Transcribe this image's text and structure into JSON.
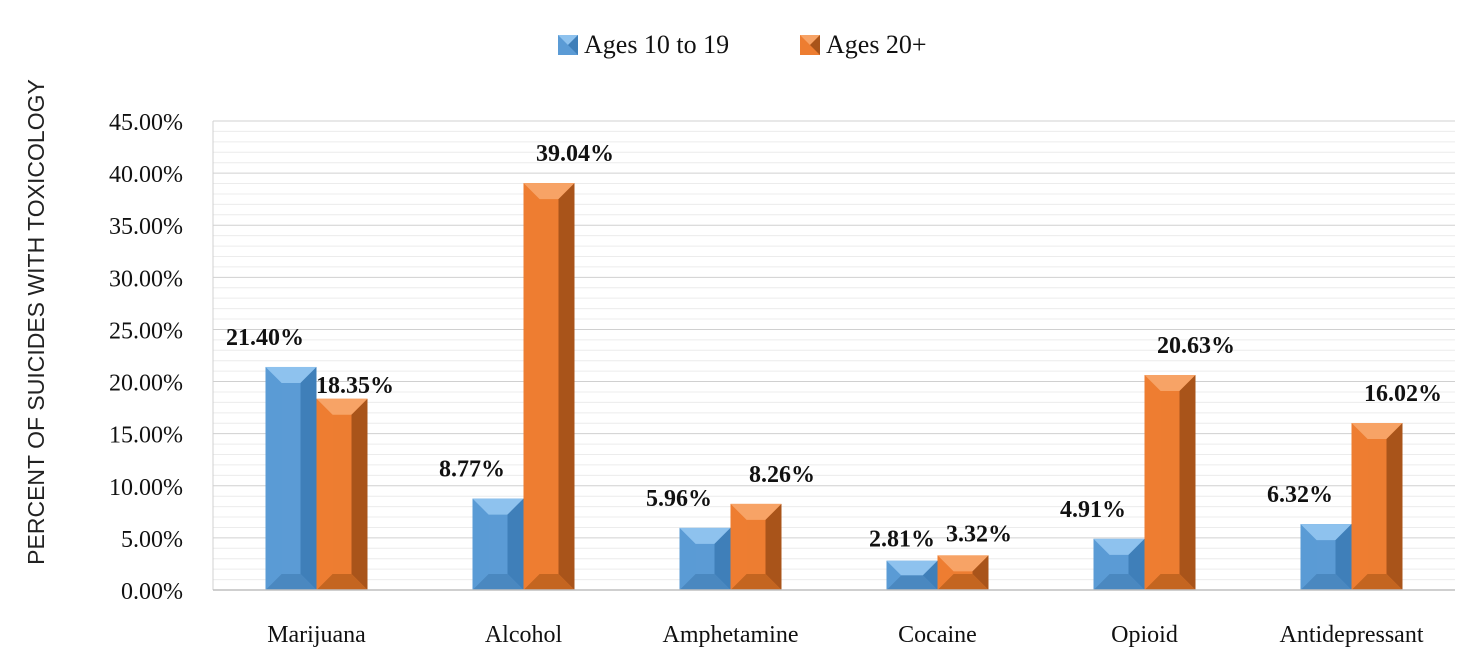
{
  "chart_data": {
    "type": "bar",
    "categories": [
      "Marijuana",
      "Alcohol",
      "Amphetamine",
      "Cocaine",
      "Opioid",
      "Antidepressant"
    ],
    "series": [
      {
        "name": "Ages 10 to 19",
        "values": [
          21.4,
          8.77,
          5.96,
          2.81,
          4.91,
          6.32
        ],
        "labels": [
          "21.40%",
          "8.77%",
          "5.96%",
          "2.81%",
          "4.91%",
          "6.32%"
        ],
        "color": "#5b9bd5"
      },
      {
        "name": "Ages 20+",
        "values": [
          18.35,
          39.04,
          8.26,
          3.32,
          20.63,
          16.02
        ],
        "labels": [
          "18.35%",
          "39.04%",
          "8.26%",
          "3.32%",
          "20.63%",
          "16.02%"
        ],
        "color": "#ed7d31"
      }
    ],
    "title": "",
    "xlabel": "",
    "ylabel": "PERCENT OF SUICIDES WITH TOXICOLOGY",
    "ylim": [
      0,
      45
    ],
    "yticks": [
      "0.00%",
      "5.00%",
      "10.00%",
      "15.00%",
      "20.00%",
      "25.00%",
      "30.00%",
      "35.00%",
      "40.00%",
      "45.00%"
    ],
    "grid": true,
    "legend": "top-center"
  }
}
